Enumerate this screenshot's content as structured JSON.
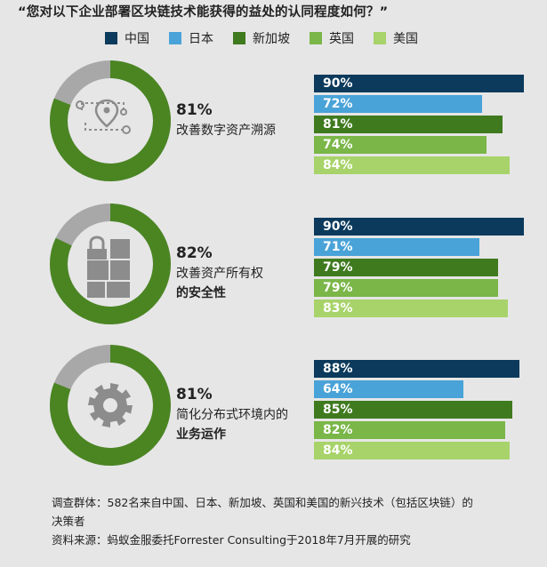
{
  "title": "“您对以下企业部署区块链技术能获得的益处的认同程度如何？”",
  "legend": [
    {
      "label": "中国",
      "color": "#0b3a5c"
    },
    {
      "label": "日本",
      "color": "#4aa3d8"
    },
    {
      "label": "新加坡",
      "color": "#3f7a1f"
    },
    {
      "label": "英国",
      "color": "#7ab648"
    },
    {
      "label": "美国",
      "color": "#a8d36a"
    }
  ],
  "colors": {
    "donut_fill": "#4a8522",
    "donut_rest": "#a8a8a8",
    "donut_inner": "#e6e6e6",
    "icon_gray": "#8c8c8c",
    "background": "#e6e6e6"
  },
  "chart_data": {
    "type": "bar",
    "categories": [
      "中国",
      "日本",
      "新加坡",
      "英国",
      "美国"
    ],
    "xlim": [
      0,
      100
    ],
    "groups": [
      {
        "overall": 81,
        "overall_label": "81%",
        "label_lines": [
          "改善数字资产溯源"
        ],
        "label_bold_last": false,
        "icon": "location-path-icon",
        "values": [
          90,
          72,
          81,
          74,
          84
        ],
        "value_labels": [
          "90%",
          "72%",
          "81%",
          "74%",
          "84%"
        ]
      },
      {
        "overall": 82,
        "overall_label": "82%",
        "label_lines": [
          "改善资产所有权",
          "的安全性"
        ],
        "label_bold_last": true,
        "icon": "lock-icon",
        "values": [
          90,
          71,
          79,
          79,
          83
        ],
        "value_labels": [
          "90%",
          "71%",
          "79%",
          "79%",
          "83%"
        ]
      },
      {
        "overall": 81,
        "overall_label": "81%",
        "label_lines": [
          "简化分布式环境内的",
          "业务运作"
        ],
        "label_bold_last": true,
        "icon": "gear-icon",
        "values": [
          88,
          64,
          85,
          82,
          84
        ],
        "value_labels": [
          "88%",
          "64%",
          "85%",
          "82%",
          "84%"
        ]
      }
    ]
  },
  "footer": {
    "line1": "调查群体：582名来自中国、日本、新加坡、英国和美国的新兴技术（包括区块链）的",
    "line2": "决策者",
    "line3": "资料来源：蚂蚁金服委托Forrester Consulting于2018年7月开展的研究"
  }
}
